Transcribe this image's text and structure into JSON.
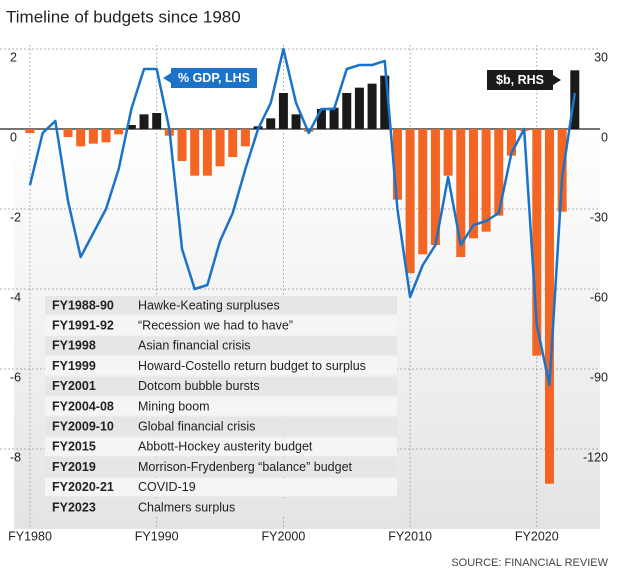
{
  "chart_data": {
    "type": "bar_line",
    "title": "Timeline of budgets since 1980",
    "source": "SOURCE: FINANCIAL REVIEW",
    "categories": [
      "FY1980",
      null,
      null,
      null,
      null,
      null,
      null,
      null,
      null,
      null,
      "FY1990",
      null,
      null,
      null,
      null,
      null,
      null,
      null,
      null,
      null,
      "FY2000",
      null,
      null,
      null,
      null,
      null,
      null,
      null,
      null,
      null,
      "FY2010",
      null,
      null,
      null,
      null,
      null,
      null,
      null,
      null,
      null,
      "FY2020",
      null,
      null,
      null
    ],
    "series": [
      {
        "name": "$b, RHS",
        "type": "bar",
        "axis": "y2",
        "color": "#1a1a1a",
        "negative_color": "#f26522",
        "values": [
          -1.5,
          0,
          0,
          -3,
          -6.5,
          -5.5,
          -5,
          -2,
          1.5,
          5.5,
          6,
          -2.5,
          -12,
          -17.5,
          -17.5,
          -14,
          -10.5,
          -6.5,
          1,
          4,
          13.5,
          5.5,
          -1,
          7.5,
          8,
          13.5,
          15.5,
          17,
          20,
          -26.5,
          -54,
          -47,
          -43.5,
          -17.5,
          -48,
          -41,
          -38.5,
          -32.5,
          -10,
          -0.7,
          -85,
          -133,
          -31,
          22
        ]
      },
      {
        "name": "% GDP, LHS",
        "type": "line",
        "color": "#1a73c8",
        "values": [
          -1.4,
          -0.1,
          0.2,
          -1.8,
          -3.2,
          -2.6,
          -2.0,
          -1.0,
          0.5,
          1.5,
          1.5,
          0,
          -3.0,
          -4.0,
          -3.9,
          -2.8,
          -2.1,
          -1.0,
          0,
          0.65,
          2.0,
          0.65,
          -0.1,
          0.5,
          0.5,
          1.5,
          1.6,
          1.6,
          1.7,
          -2.0,
          -4.2,
          -3.4,
          -2.9,
          -1.2,
          -2.9,
          -2.4,
          -2.3,
          -2.1,
          -0.6,
          0,
          -4.9,
          -6.4,
          -1.2,
          0.9
        ]
      }
    ],
    "ylim": [
      -10,
      2.1
    ],
    "yticks": [
      2,
      0,
      -2,
      -4,
      -6,
      -8
    ],
    "y2lim": [
      -150,
      31.5
    ],
    "y2ticks": [
      30,
      0,
      -30,
      -60,
      -90,
      -120
    ],
    "grid": true,
    "annotations": [
      {
        "period": "FY1988-90",
        "text": "Hawke-Keating surpluses"
      },
      {
        "period": "FY1991-92",
        "text": "“Recession we had to have”"
      },
      {
        "period": "FY1998",
        "text": "Asian financial crisis"
      },
      {
        "period": "FY1999",
        "text": "Howard-Costello return budget to surplus"
      },
      {
        "period": "FY2001",
        "text": "Dotcom bubble bursts"
      },
      {
        "period": "FY2004-08",
        "text": "Mining boom"
      },
      {
        "period": "FY2009-10",
        "text": "Global financial crisis"
      },
      {
        "period": "FY2015",
        "text": "Abbott-Hockey austerity budget"
      },
      {
        "period": "FY2019",
        "text": "Morrison-Frydenberg “balance” budget"
      },
      {
        "period": "FY2020-21",
        "text": "COVID-19"
      },
      {
        "period": "FY2023",
        "text": "Chalmers surplus"
      }
    ]
  }
}
